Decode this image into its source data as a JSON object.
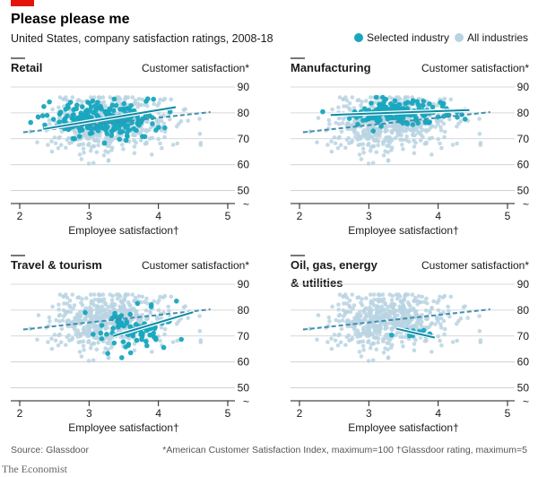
{
  "chart_data": {
    "type": "scatter",
    "title": "Please please me",
    "subtitle": "United States, company satisfaction ratings, 2008-18",
    "legend": {
      "selected": "Selected industry",
      "all": "All industries",
      "placement": "top-right"
    },
    "colors": {
      "selected": "#17a7be",
      "all": "#b8d3e2",
      "brand_red": "#e3120b",
      "grid": "#cccccc"
    },
    "xlabel": "Employee satisfaction†",
    "ylabel": "Customer satisfaction*",
    "xlim": [
      2,
      5
    ],
    "ylim": [
      45,
      90
    ],
    "xticks": [
      "2",
      "3",
      "4",
      "5"
    ],
    "yticks": [
      "90",
      "80",
      "70",
      "60",
      "50"
    ],
    "axis_break_symbol": "~",
    "all_industries_trend": {
      "x": [
        2.05,
        4.75
      ],
      "y": [
        72.5,
        80.3
      ]
    },
    "all_industries_cloud": {
      "x_mean": 3.3,
      "x_sd": 0.42,
      "y_mean": 76,
      "y_sd": 5.5,
      "n": 520
    },
    "panels": [
      {
        "name": "Retail",
        "title_lines": [
          "Retail"
        ],
        "selected_trend": {
          "x": [
            2.35,
            4.25
          ],
          "y": [
            73.8,
            82.2
          ]
        },
        "selected_cloud": {
          "x_mean": 3.2,
          "x_sd": 0.38,
          "y_mean": 77.5,
          "y_sd": 3.4,
          "n": 230
        }
      },
      {
        "name": "Manufacturing",
        "title_lines": [
          "Manufacturing"
        ],
        "selected_trend": {
          "x": [
            2.45,
            4.45
          ],
          "y": [
            79.2,
            81.1
          ]
        },
        "selected_cloud": {
          "x_mean": 3.4,
          "x_sd": 0.33,
          "y_mean": 80.2,
          "y_sd": 2.1,
          "n": 160
        }
      },
      {
        "name": "Travel & tourism",
        "title_lines": [
          "Travel & tourism"
        ],
        "selected_trend": {
          "x": [
            3.35,
            4.5
          ],
          "y": [
            70.0,
            79.2
          ]
        },
        "selected_cloud": {
          "x_mean": 3.65,
          "x_sd": 0.3,
          "y_mean": 73,
          "y_sd": 4.8,
          "n": 80
        }
      },
      {
        "name": "Oil, gas, energy & utilities",
        "title_lines": [
          "Oil, gas, energy",
          "& utilities"
        ],
        "selected_trend": {
          "x": [
            3.4,
            3.95
          ],
          "y": [
            72.8,
            69.4
          ]
        },
        "selected_cloud": {
          "x_mean": 3.65,
          "x_sd": 0.16,
          "y_mean": 71,
          "y_sd": 1.2,
          "n": 14
        }
      }
    ],
    "source": "Source: Glassdoor",
    "footnotes": "*American Customer Satisfaction Index, maximum=100   †Glassdoor rating, maximum=5",
    "brand": "The Economist"
  }
}
